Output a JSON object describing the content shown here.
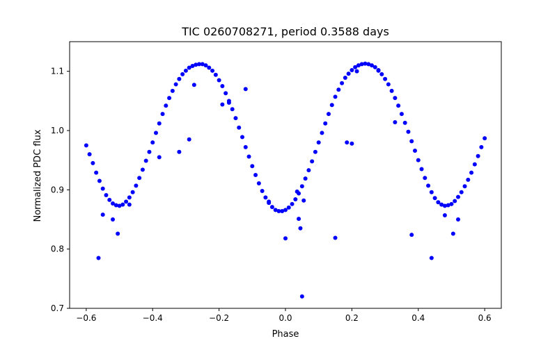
{
  "chart_data": {
    "type": "scatter",
    "title": "TIC 0260708271, period 0.3588 days",
    "xlabel": "Phase",
    "ylabel": "Normalized PDC flux",
    "xlim": [
      -0.65,
      0.65
    ],
    "ylim": [
      0.7,
      1.15
    ],
    "grid": false,
    "marker_color": "#0000ff",
    "x_ticks": [
      -0.6,
      -0.4,
      -0.2,
      0.0,
      0.2,
      0.4,
      0.6
    ],
    "x_tick_labels": [
      "−0.6",
      "−0.4",
      "−0.2",
      "0.0",
      "0.2",
      "0.4",
      "0.6"
    ],
    "y_ticks": [
      0.7,
      0.8,
      0.9,
      1.0,
      1.1
    ],
    "y_tick_labels": [
      "0.7",
      "0.8",
      "0.9",
      "1.0",
      "1.1"
    ],
    "series": [
      {
        "x": [
          -0.6,
          -0.59,
          -0.58,
          -0.57,
          -0.56,
          -0.55,
          -0.54,
          -0.53,
          -0.52,
          -0.51,
          -0.5,
          -0.49,
          -0.48,
          -0.47,
          -0.46,
          -0.45,
          -0.44,
          -0.43,
          -0.42,
          -0.41,
          -0.4,
          -0.39,
          -0.38,
          -0.37,
          -0.36,
          -0.35,
          -0.34,
          -0.33,
          -0.32,
          -0.31,
          -0.3,
          -0.29,
          -0.28,
          -0.27,
          -0.26,
          -0.25,
          -0.24,
          -0.23,
          -0.22,
          -0.21,
          -0.2,
          -0.19,
          -0.18,
          -0.17,
          -0.16,
          -0.15,
          -0.14,
          -0.13,
          -0.12,
          -0.11,
          -0.1,
          -0.09,
          -0.08,
          -0.07,
          -0.06,
          -0.05,
          -0.04,
          -0.03,
          -0.02,
          -0.01,
          0.0,
          0.01,
          0.02,
          0.03,
          0.04,
          0.05,
          0.06,
          0.07,
          0.08,
          0.09,
          0.1,
          0.11,
          0.12,
          0.13,
          0.14,
          0.15,
          0.16,
          0.17,
          0.18,
          0.19,
          0.2,
          0.21,
          0.22,
          0.23,
          0.24,
          0.25,
          0.26,
          0.27,
          0.28,
          0.29,
          0.3,
          0.31,
          0.32,
          0.33,
          0.34,
          0.35,
          0.36,
          0.37,
          0.38,
          0.39,
          0.4,
          0.41,
          0.42,
          0.43,
          0.44,
          0.45,
          0.46,
          0.47,
          0.48,
          0.49,
          0.5,
          0.51,
          0.52,
          0.53,
          0.54,
          0.55,
          0.56,
          0.57,
          0.58,
          0.59,
          0.6,
          -0.563,
          -0.55,
          -0.52,
          -0.505,
          -0.47,
          -0.38,
          -0.32,
          -0.29,
          -0.275,
          -0.19,
          -0.17,
          -0.12,
          -0.05,
          0.0,
          0.035,
          0.04,
          0.045,
          0.05,
          0.055,
          0.15,
          0.185,
          0.2,
          0.215,
          0.28,
          0.33,
          0.38,
          0.44,
          0.48,
          0.505,
          0.52
        ],
        "y": [
          0.975,
          0.96,
          0.945,
          0.929,
          0.915,
          0.902,
          0.891,
          0.883,
          0.877,
          0.874,
          0.873,
          0.875,
          0.88,
          0.887,
          0.896,
          0.907,
          0.92,
          0.934,
          0.949,
          0.964,
          0.98,
          0.996,
          1.012,
          1.028,
          1.042,
          1.055,
          1.067,
          1.078,
          1.087,
          1.095,
          1.101,
          1.106,
          1.109,
          1.111,
          1.112,
          1.112,
          1.11,
          1.106,
          1.101,
          1.094,
          1.085,
          1.075,
          1.063,
          1.05,
          1.036,
          1.021,
          1.005,
          0.989,
          0.972,
          0.956,
          0.94,
          0.925,
          0.911,
          0.898,
          0.887,
          0.878,
          0.871,
          0.866,
          0.864,
          0.864,
          0.866,
          0.87,
          0.876,
          0.884,
          0.894,
          0.906,
          0.919,
          0.933,
          0.948,
          0.964,
          0.98,
          0.996,
          1.012,
          1.028,
          1.043,
          1.057,
          1.069,
          1.08,
          1.089,
          1.096,
          1.102,
          1.107,
          1.11,
          1.112,
          1.113,
          1.112,
          1.11,
          1.107,
          1.102,
          1.095,
          1.087,
          1.078,
          1.067,
          1.055,
          1.042,
          1.028,
          1.013,
          0.998,
          0.982,
          0.966,
          0.95,
          0.935,
          0.92,
          0.907,
          0.896,
          0.886,
          0.879,
          0.875,
          0.873,
          0.874,
          0.876,
          0.881,
          0.888,
          0.896,
          0.906,
          0.917,
          0.929,
          0.943,
          0.957,
          0.972,
          0.987,
          0.785,
          0.858,
          0.85,
          0.826,
          0.875,
          0.955,
          0.964,
          0.985,
          1.077,
          1.044,
          1.047,
          1.07,
          0.88,
          0.818,
          0.897,
          0.851,
          0.835,
          0.72,
          0.882,
          0.819,
          0.98,
          0.978,
          1.1,
          1.101,
          1.014,
          0.824,
          0.785,
          0.857,
          0.826,
          0.85
        ]
      }
    ]
  }
}
